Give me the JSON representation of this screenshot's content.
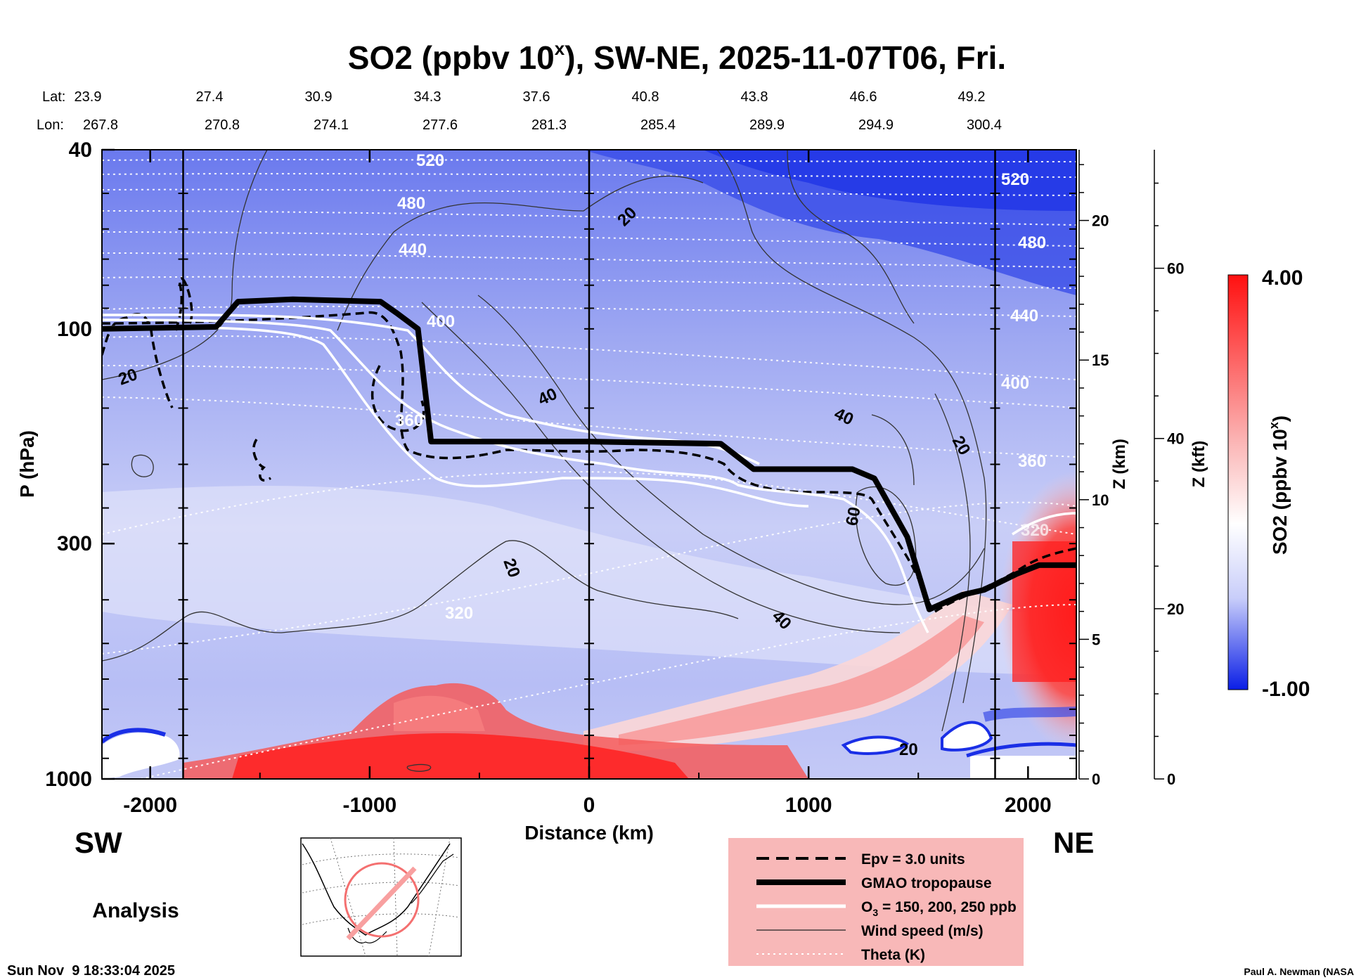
{
  "chart_data": {
    "type": "heatmap",
    "title": "SO2 (ppbv 10",
    "title_sup": "x",
    "title_tail": "), SW-NE, 2025-11-07T06, Fri.",
    "lat_label": "Lat:",
    "lon_label": "Lon:",
    "lat_values": [
      "23.9",
      "27.4",
      "30.9",
      "34.3",
      "37.6",
      "40.8",
      "43.8",
      "46.6",
      "49.2"
    ],
    "lon_values": [
      "267.8",
      "270.8",
      "274.1",
      "277.6",
      "281.3",
      "285.4",
      "289.9",
      "294.9",
      "300.4"
    ],
    "xlabel": "Distance (km)",
    "x_ticks": [
      -2000,
      -1000,
      0,
      1000,
      2000
    ],
    "xlim": [
      -2220,
      2220
    ],
    "ylabel": "P (hPa)",
    "y_log_scale": true,
    "ylim": [
      1000,
      40
    ],
    "y_ticks": [
      40,
      100,
      300,
      1000
    ],
    "zkm_label": "Z (km)",
    "zkm_ticks": [
      0,
      5,
      10,
      15,
      20
    ],
    "zkft_label": "Z (kft)",
    "zkft_ticks": [
      0,
      20,
      40,
      60
    ],
    "colorbar": {
      "label": "SO2 (ppbv 10",
      "label_sup": "x",
      "label_tail": ")",
      "max_label": "4.00",
      "min_label": "-1.00",
      "range": [
        -1.0,
        4.0
      ],
      "high_color": "#ff1010",
      "mid_color": "#ffffff",
      "low_color": "#0a1ee6"
    },
    "profile_lines_km": [
      -1850,
      0,
      1850
    ],
    "theta_contour_labels": [
      "520",
      "480",
      "440",
      "400",
      "360",
      "320",
      "520",
      "480",
      "440",
      "400",
      "360",
      "320"
    ],
    "wind_contour_labels": [
      "20",
      "20",
      "20",
      "40",
      "40",
      "20",
      "60",
      "40",
      "20"
    ],
    "gmao_tropopause": {
      "x_km": [
        -2220,
        -1700,
        -1600,
        -1350,
        -950,
        -880,
        -780,
        -720,
        0,
        600,
        750,
        1200,
        1300,
        1450,
        1550,
        1700,
        1800,
        1950,
        2050,
        2220
      ],
      "p_hpa": [
        100,
        99,
        87,
        86,
        87,
        92,
        100,
        178,
        178,
        180,
        205,
        205,
        215,
        290,
        420,
        390,
        380,
        350,
        335,
        335
      ]
    },
    "annotations": {
      "sw": "SW",
      "ne": "NE",
      "analysis": "Analysis",
      "timestamp": "Sun Nov  9 18:33:04 2025",
      "credit": "Paul A. Newman (NASA"
    },
    "legend": {
      "placement": "bottom-center",
      "bg_color": "#f8b8b8",
      "items": [
        {
          "label": "Epv = 3.0 units",
          "style": "dashed-black"
        },
        {
          "label": "GMAO tropopause",
          "style": "thick-black"
        },
        {
          "label": "O",
          "sub": "3",
          "tail": " = 150, 200, 250 ppb",
          "style": "thick-white"
        },
        {
          "label": "Wind speed (m/s)",
          "style": "thin-black"
        },
        {
          "label": "Theta (K)",
          "style": "dotted-white"
        }
      ]
    }
  }
}
